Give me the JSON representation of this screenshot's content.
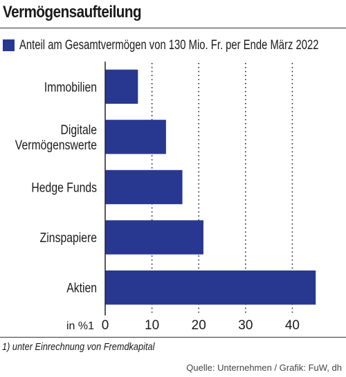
{
  "chart_data": {
    "type": "bar",
    "orientation": "horizontal",
    "title": "Vermögensaufteilung",
    "legend": "Anteil am Gesamtvermögen von 130 Mio. Fr. per Ende März 2022",
    "categories": [
      "Immobilien",
      [
        "Digitale",
        "Vermögenswerte"
      ],
      "Hedge Funds",
      "Zinspapiere",
      "Aktien"
    ],
    "values": [
      7,
      13,
      16.5,
      21,
      45
    ],
    "xlabel": "in %1",
    "xticks": [
      0,
      10,
      20,
      30,
      40
    ],
    "xlim": [
      0,
      46
    ],
    "grid": "vertical-dotted",
    "bar_color": "#283891"
  },
  "footnote": "1) unter Einrechnung von Fremdkapital",
  "source": "Quelle: Unternehmen / Grafik: FuW, dh"
}
